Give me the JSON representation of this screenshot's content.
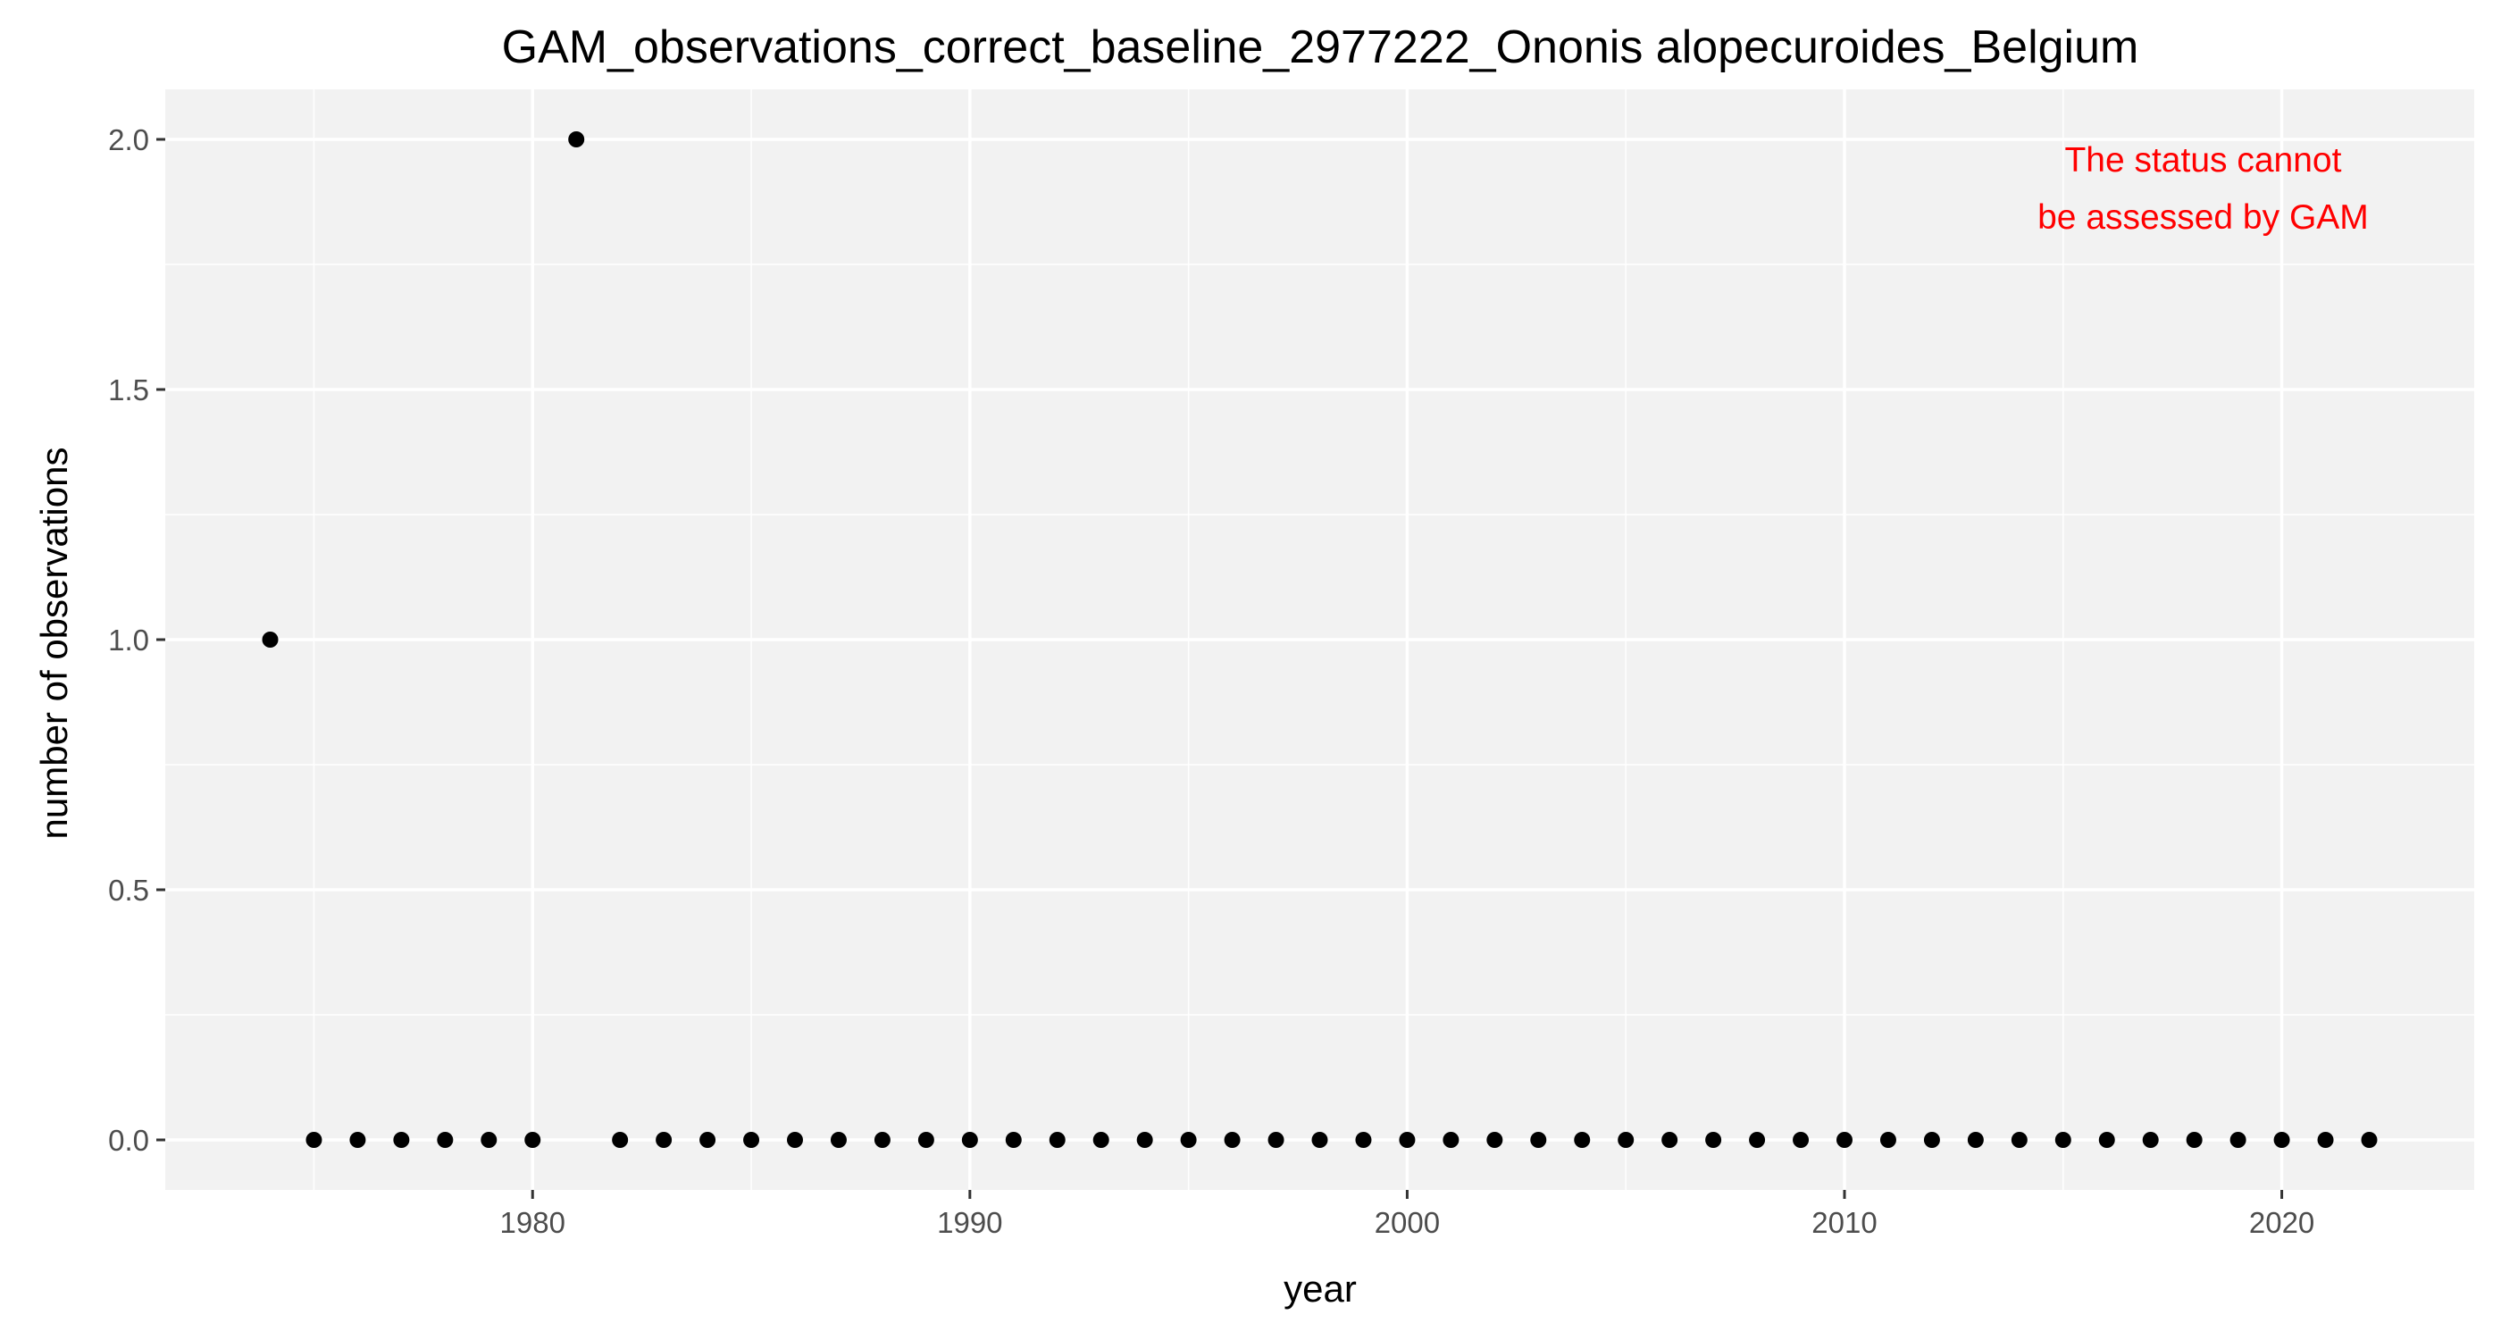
{
  "chart_data": {
    "type": "scatter",
    "title": "GAM_observations_correct_baseline_2977222_Ononis alopecuroides_Belgium",
    "xlabel": "year",
    "ylabel": "number of observations",
    "xlim": [
      1971.6,
      2024.4
    ],
    "ylim": [
      -0.1,
      2.1
    ],
    "x_ticks": [
      1980,
      1990,
      2000,
      2010,
      2020
    ],
    "x_minor_ticks": [
      1975,
      1985,
      1995,
      2005,
      2015
    ],
    "y_ticks": [
      0.0,
      0.5,
      1.0,
      1.5,
      2.0
    ],
    "y_tick_labels": [
      "0.0",
      "0.5",
      "1.0",
      "1.5",
      "2.0"
    ],
    "y_minor_ticks": [
      0.25,
      0.75,
      1.25,
      1.75
    ],
    "grid": true,
    "panel_color": "#f2f2f2",
    "point_color": "#000000",
    "series": [
      {
        "x": [
          1974,
          1975,
          1976,
          1977,
          1978,
          1979,
          1980,
          1981,
          1982,
          1983,
          1984,
          1985,
          1986,
          1987,
          1988,
          1989,
          1990,
          1991,
          1992,
          1993,
          1994,
          1995,
          1996,
          1997,
          1998,
          1999,
          2000,
          2001,
          2002,
          2003,
          2004,
          2005,
          2006,
          2007,
          2008,
          2009,
          2010,
          2011,
          2012,
          2013,
          2014,
          2015,
          2016,
          2017,
          2018,
          2019,
          2020,
          2021,
          2022
        ],
        "values": [
          1,
          0,
          0,
          0,
          0,
          0,
          0,
          2,
          0,
          0,
          0,
          0,
          0,
          0,
          0,
          0,
          0,
          0,
          0,
          0,
          0,
          0,
          0,
          0,
          0,
          0,
          0,
          0,
          0,
          0,
          0,
          0,
          0,
          0,
          0,
          0,
          0,
          0,
          0,
          0,
          0,
          0,
          0,
          0,
          0,
          0,
          0,
          0,
          0
        ]
      }
    ],
    "annotation": {
      "lines": [
        "The status cannot",
        "be assessed by GAM"
      ],
      "color": "#ff0000",
      "placement": "top-right"
    }
  }
}
